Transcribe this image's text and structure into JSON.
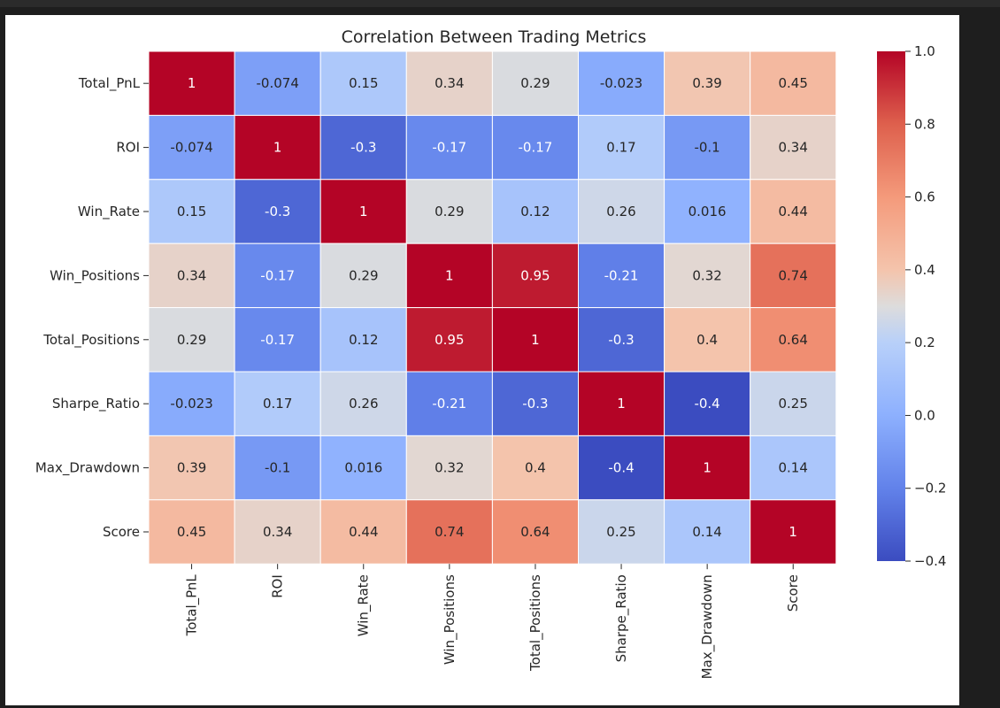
{
  "chart_data": {
    "type": "heatmap",
    "title": "Correlation Between Trading Metrics",
    "xlabel": "",
    "ylabel": "",
    "rows": [
      "Total_PnL",
      "ROI",
      "Win_Rate",
      "Win_Positions",
      "Total_Positions",
      "Sharpe_Ratio",
      "Max_Drawdown",
      "Score"
    ],
    "columns": [
      "Total_PnL",
      "ROI",
      "Win_Rate",
      "Win_Positions",
      "Total_Positions",
      "Sharpe_Ratio",
      "Max_Drawdown",
      "Score"
    ],
    "values": [
      [
        1,
        -0.074,
        0.15,
        0.34,
        0.29,
        -0.023,
        0.39,
        0.45
      ],
      [
        -0.074,
        1,
        -0.3,
        -0.17,
        -0.17,
        0.17,
        -0.1,
        0.34
      ],
      [
        0.15,
        -0.3,
        1,
        0.29,
        0.12,
        0.26,
        0.016,
        0.44
      ],
      [
        0.34,
        -0.17,
        0.29,
        1,
        0.95,
        -0.21,
        0.32,
        0.74
      ],
      [
        0.29,
        -0.17,
        0.12,
        0.95,
        1,
        -0.3,
        0.4,
        0.64
      ],
      [
        -0.023,
        0.17,
        0.26,
        -0.21,
        -0.3,
        1,
        -0.4,
        0.25
      ],
      [
        0.39,
        -0.1,
        0.016,
        0.32,
        0.4,
        -0.4,
        1,
        0.14
      ],
      [
        0.45,
        0.34,
        0.44,
        0.74,
        0.64,
        0.25,
        0.14,
        1
      ]
    ],
    "colormap": "coolwarm",
    "vmin": -0.4,
    "vmax": 1.0,
    "colorbar_ticks": [
      "1.0",
      "0.8",
      "0.6",
      "0.4",
      "0.2",
      "0.0",
      "−0.2",
      "−0.4"
    ],
    "colorbar_tick_values": [
      1.0,
      0.8,
      0.6,
      0.4,
      0.2,
      0.0,
      -0.2,
      -0.4
    ],
    "annotations": true,
    "legend": "colorbar-right"
  },
  "colors": {
    "page_background": "#1e1e1e",
    "panel_background": "#ffffff",
    "text": "#262626",
    "cell_border": "#ffffff"
  }
}
